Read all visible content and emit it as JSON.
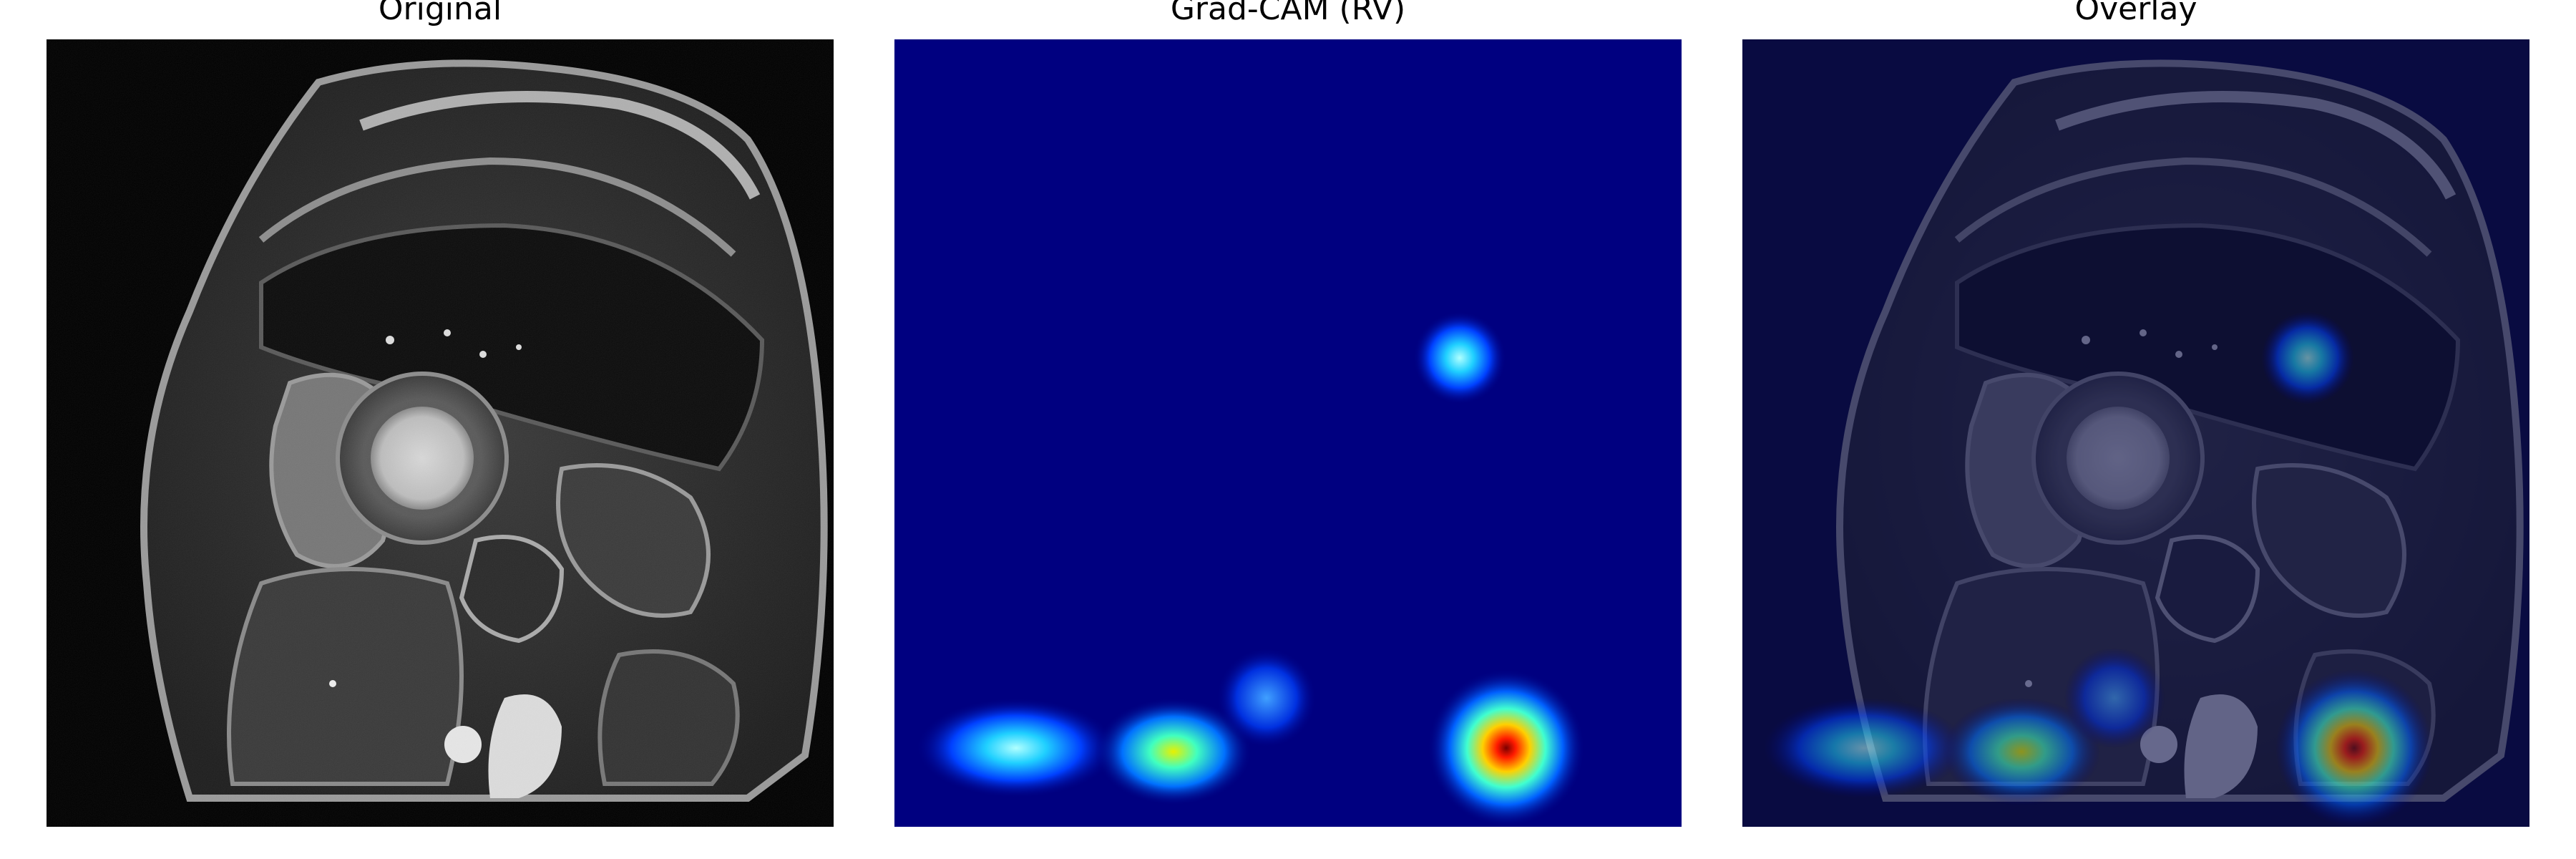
{
  "figure": {
    "panels": [
      {
        "title": "Original"
      },
      {
        "title": "Grad-CAM (RV)"
      },
      {
        "title": "Overlay"
      }
    ]
  },
  "colors": {
    "background": "#ffffff",
    "jet_low": "#000080",
    "jet_cyan": "#40e0ff",
    "jet_yellow": "#f0f000",
    "jet_red": "#ff0000",
    "overlay_tint": "#101450"
  }
}
